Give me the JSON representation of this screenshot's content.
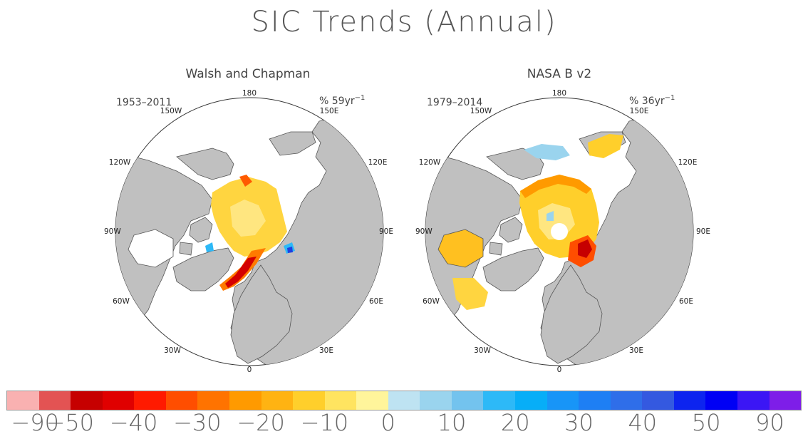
{
  "title": "SIC Trends (Annual)",
  "maps": [
    {
      "name": "Walsh and Chapman",
      "period": "1953–2011",
      "units": "% 59yr",
      "units_exp": "−1",
      "ticks": {
        "t180": "180",
        "t150w": "150W",
        "t150e": "150E",
        "t120w": "120W",
        "t120e": "120E",
        "t90w": "90W",
        "t90e": "90E",
        "t60w": "60W",
        "t60e": "60E",
        "t30w": "30W",
        "t30e": "30E",
        "t0": "0"
      }
    },
    {
      "name": "NASA B v2",
      "period": "1979–2014",
      "units": "% 36yr",
      "units_exp": "−1",
      "ticks": {
        "t180": "180",
        "t150w": "150W",
        "t150e": "150E",
        "t120w": "120W",
        "t120e": "120E",
        "t90w": "90W",
        "t90e": "90E",
        "t60w": "60W",
        "t60e": "60E",
        "t30w": "30W",
        "t30e": "30E",
        "t0": "0"
      }
    }
  ],
  "colorbar": {
    "colors": [
      "#f9b1b1",
      "#e35353",
      "#c60000",
      "#e00000",
      "#ff1a00",
      "#ff4e00",
      "#ff7300",
      "#ff9a00",
      "#ffb312",
      "#ffcf2b",
      "#ffe460",
      "#fff59b",
      "#bee3f2",
      "#9ad4ee",
      "#73c3ee",
      "#2db9f7",
      "#07aef7",
      "#1895f7",
      "#1e7ff4",
      "#2f6ee9",
      "#3459e0",
      "#0d24ef",
      "#0000f5",
      "#3b16f5",
      "#7e1ee8"
    ],
    "labels": [
      "−90",
      "−50",
      "−40",
      "−30",
      "−20",
      "−10",
      "0",
      "10",
      "20",
      "30",
      "40",
      "50",
      "90"
    ]
  }
}
